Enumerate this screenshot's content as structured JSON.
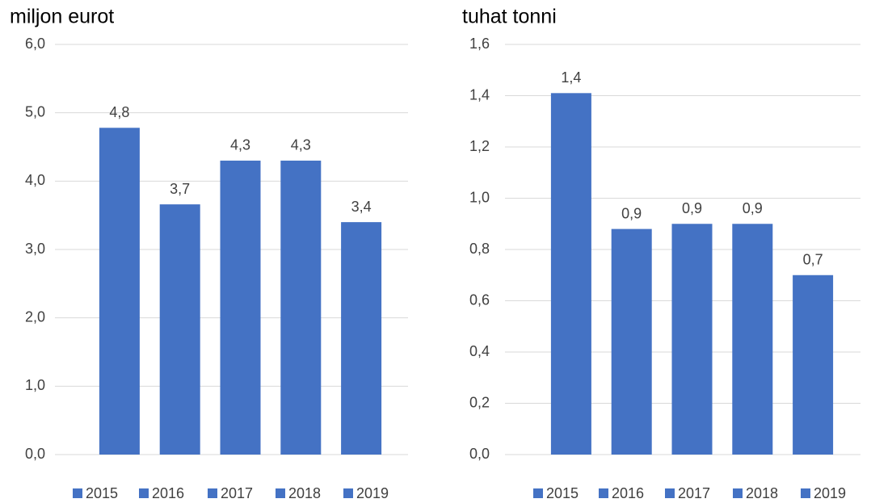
{
  "chart_data": [
    {
      "type": "bar",
      "title": "miljon eurot",
      "ylim": [
        0,
        6
      ],
      "yticks": [
        {
          "value": 0,
          "label": "0,0"
        },
        {
          "value": 1,
          "label": "1,0"
        },
        {
          "value": 2,
          "label": "2,0"
        },
        {
          "value": 3,
          "label": "3,0"
        },
        {
          "value": 4,
          "label": "4,0"
        },
        {
          "value": 5,
          "label": "5,0"
        },
        {
          "value": 6,
          "label": "6,0"
        }
      ],
      "grid": true,
      "legend": "bottom",
      "series": [
        {
          "name": "2015",
          "color": "#4472c4",
          "values": [
            4.78
          ],
          "value_labels": [
            "4,8"
          ]
        },
        {
          "name": "2016",
          "color": "#4472c4",
          "values": [
            3.66
          ],
          "value_labels": [
            "3,7"
          ]
        },
        {
          "name": "2017",
          "color": "#4472c4",
          "values": [
            4.3
          ],
          "value_labels": [
            "4,3"
          ]
        },
        {
          "name": "2018",
          "color": "#4472c4",
          "values": [
            4.3
          ],
          "value_labels": [
            "4,3"
          ]
        },
        {
          "name": "2019",
          "color": "#4472c4",
          "values": [
            3.4
          ],
          "value_labels": [
            "3,4"
          ]
        }
      ]
    },
    {
      "type": "bar",
      "title": "tuhat tonni",
      "ylim": [
        0,
        1.6
      ],
      "yticks": [
        {
          "value": 0,
          "label": "0,0"
        },
        {
          "value": 0.2,
          "label": "0,2"
        },
        {
          "value": 0.4,
          "label": "0,4"
        },
        {
          "value": 0.6,
          "label": "0,6"
        },
        {
          "value": 0.8,
          "label": "0,8"
        },
        {
          "value": 1.0,
          "label": "1,0"
        },
        {
          "value": 1.2,
          "label": "1,2"
        },
        {
          "value": 1.4,
          "label": "1,4"
        },
        {
          "value": 1.6,
          "label": "1,6"
        }
      ],
      "grid": true,
      "legend": "bottom",
      "series": [
        {
          "name": "2015",
          "color": "#4472c4",
          "values": [
            1.41
          ],
          "value_labels": [
            "1,4"
          ]
        },
        {
          "name": "2016",
          "color": "#4472c4",
          "values": [
            0.88
          ],
          "value_labels": [
            "0,9"
          ]
        },
        {
          "name": "2017",
          "color": "#4472c4",
          "values": [
            0.9
          ],
          "value_labels": [
            "0,9"
          ]
        },
        {
          "name": "2018",
          "color": "#4472c4",
          "values": [
            0.9
          ],
          "value_labels": [
            "0,9"
          ]
        },
        {
          "name": "2019",
          "color": "#4472c4",
          "values": [
            0.7
          ],
          "value_labels": [
            "0,7"
          ]
        }
      ]
    }
  ]
}
